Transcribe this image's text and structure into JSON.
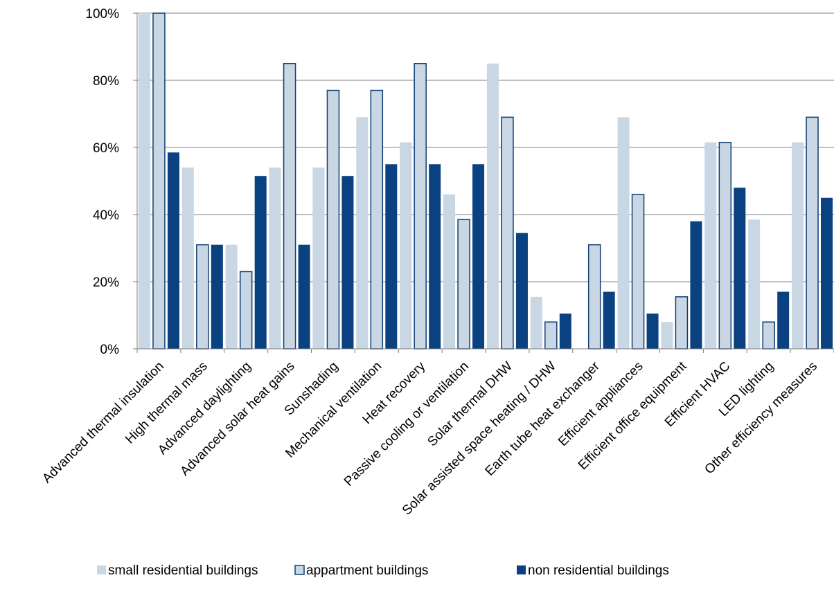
{
  "colors": {
    "small": "#c9d6e3",
    "appartment": "#c9d6e3",
    "appartment_stroke": "#0f3d73",
    "nonres": "#0a4180",
    "grid": "#808080",
    "axis": "#7f7f7f"
  },
  "chart_data": {
    "type": "bar",
    "title": "",
    "xlabel": "",
    "ylabel": "",
    "ylim": [
      0,
      100
    ],
    "y_ticks": [
      0,
      20,
      40,
      60,
      80,
      100
    ],
    "y_tick_labels": [
      "0%",
      "20%",
      "40%",
      "60%",
      "80%",
      "100%"
    ],
    "grid": true,
    "legend_position": "bottom",
    "categories": [
      "Advanced thermal insulation",
      "High thermal mass",
      "Advanced daylighting",
      "Advanced solar heat gains",
      "Sunshading",
      "Mechanical ventilation",
      "Heat recovery",
      "Passive cooling or ventilation",
      "Solar thermal DHW",
      "Solar assisted  space heating / DHW",
      "Earth tube heat exchanger",
      "Efficient appliances",
      "Efficient office equipment",
      "Efficient HVAC",
      "LED lighting",
      "Other efficiency measures"
    ],
    "series": [
      {
        "name": "small residential buildings",
        "values": [
          100,
          54,
          31,
          54,
          54,
          69,
          61.5,
          46,
          85,
          15.5,
          0,
          69,
          8,
          61.5,
          38.5,
          61.5
        ]
      },
      {
        "name": "appartment buildings",
        "values": [
          100,
          31,
          23,
          85,
          77,
          77,
          85,
          38.5,
          69,
          8,
          31,
          46,
          15.5,
          61.5,
          8,
          69
        ]
      },
      {
        "name": "non residential buildings",
        "values": [
          58.5,
          31,
          51.5,
          31,
          51.5,
          55,
          55,
          55,
          34.5,
          10.5,
          17,
          10.5,
          38,
          48,
          17,
          45
        ]
      }
    ]
  }
}
